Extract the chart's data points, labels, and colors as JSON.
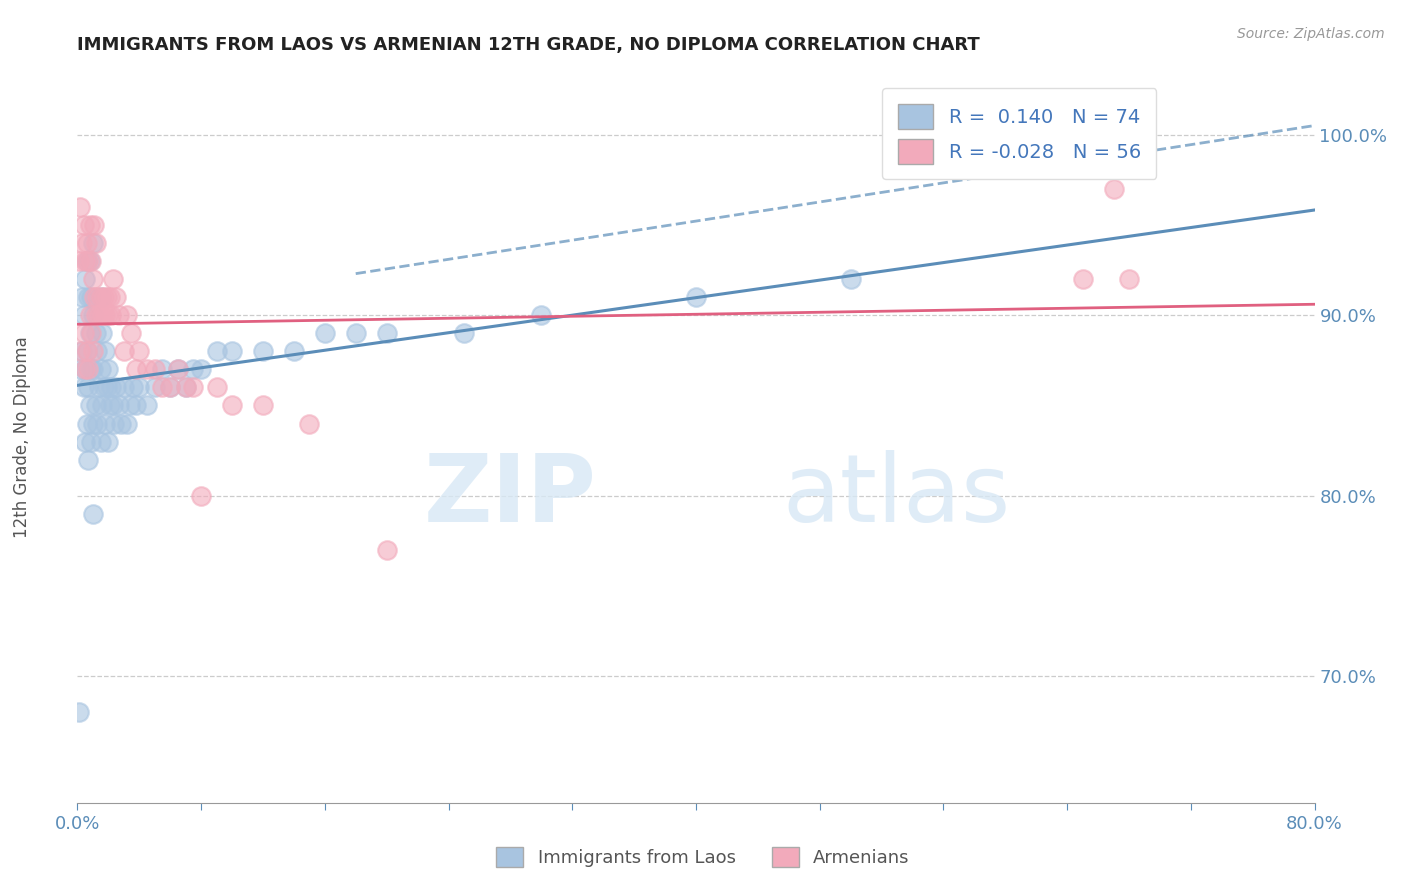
{
  "title": "IMMIGRANTS FROM LAOS VS ARMENIAN 12TH GRADE, NO DIPLOMA CORRELATION CHART",
  "source": "Source: ZipAtlas.com",
  "ylabel": "12th Grade, No Diploma",
  "xlim": [
    0.0,
    0.8
  ],
  "ylim": [
    0.63,
    1.035
  ],
  "yticks": [
    0.7,
    0.8,
    0.9,
    1.0
  ],
  "xticks": [
    0.0,
    0.08,
    0.16,
    0.24,
    0.32,
    0.4,
    0.48,
    0.56,
    0.64,
    0.72,
    0.8
  ],
  "blue_R": 0.14,
  "blue_N": 74,
  "pink_R": -0.028,
  "pink_N": 56,
  "blue_color": "#A8C4E0",
  "pink_color": "#F2AABB",
  "blue_line_color": "#5B8DB8",
  "pink_line_color": "#E06080",
  "watermark_zip": "ZIP",
  "watermark_atlas": "atlas",
  "legend_blue_label": "Immigrants from Laos",
  "legend_pink_label": "Armenians",
  "blue_scatter_x": [
    0.001,
    0.002,
    0.003,
    0.003,
    0.004,
    0.004,
    0.005,
    0.005,
    0.005,
    0.006,
    0.006,
    0.006,
    0.007,
    0.007,
    0.007,
    0.008,
    0.008,
    0.008,
    0.009,
    0.009,
    0.009,
    0.01,
    0.01,
    0.01,
    0.01,
    0.01,
    0.012,
    0.012,
    0.013,
    0.013,
    0.014,
    0.015,
    0.015,
    0.015,
    0.016,
    0.016,
    0.017,
    0.018,
    0.018,
    0.019,
    0.02,
    0.02,
    0.021,
    0.022,
    0.023,
    0.024,
    0.025,
    0.027,
    0.028,
    0.03,
    0.032,
    0.034,
    0.036,
    0.038,
    0.04,
    0.045,
    0.05,
    0.055,
    0.06,
    0.065,
    0.07,
    0.075,
    0.08,
    0.09,
    0.1,
    0.12,
    0.14,
    0.16,
    0.18,
    0.2,
    0.25,
    0.3,
    0.4,
    0.5
  ],
  "blue_scatter_y": [
    0.68,
    0.87,
    0.91,
    0.88,
    0.86,
    0.9,
    0.83,
    0.87,
    0.92,
    0.84,
    0.88,
    0.93,
    0.82,
    0.86,
    0.91,
    0.85,
    0.89,
    0.93,
    0.83,
    0.87,
    0.91,
    0.79,
    0.84,
    0.87,
    0.9,
    0.94,
    0.85,
    0.89,
    0.84,
    0.88,
    0.86,
    0.83,
    0.87,
    0.91,
    0.85,
    0.89,
    0.86,
    0.84,
    0.88,
    0.86,
    0.83,
    0.87,
    0.85,
    0.86,
    0.85,
    0.84,
    0.86,
    0.85,
    0.84,
    0.86,
    0.84,
    0.85,
    0.86,
    0.85,
    0.86,
    0.85,
    0.86,
    0.87,
    0.86,
    0.87,
    0.86,
    0.87,
    0.87,
    0.88,
    0.88,
    0.88,
    0.88,
    0.89,
    0.89,
    0.89,
    0.89,
    0.9,
    0.91,
    0.92
  ],
  "pink_scatter_x": [
    0.001,
    0.002,
    0.002,
    0.003,
    0.004,
    0.004,
    0.005,
    0.005,
    0.006,
    0.006,
    0.007,
    0.007,
    0.008,
    0.008,
    0.009,
    0.009,
    0.01,
    0.01,
    0.011,
    0.011,
    0.012,
    0.012,
    0.013,
    0.014,
    0.015,
    0.016,
    0.017,
    0.018,
    0.019,
    0.02,
    0.021,
    0.022,
    0.023,
    0.025,
    0.027,
    0.03,
    0.032,
    0.035,
    0.038,
    0.04,
    0.045,
    0.05,
    0.055,
    0.06,
    0.065,
    0.07,
    0.075,
    0.08,
    0.09,
    0.1,
    0.12,
    0.15,
    0.2,
    0.65,
    0.67,
    0.68
  ],
  "pink_scatter_y": [
    0.93,
    0.88,
    0.96,
    0.94,
    0.89,
    0.95,
    0.87,
    0.93,
    0.88,
    0.94,
    0.87,
    0.93,
    0.9,
    0.95,
    0.89,
    0.93,
    0.88,
    0.92,
    0.91,
    0.95,
    0.9,
    0.94,
    0.91,
    0.9,
    0.91,
    0.9,
    0.91,
    0.9,
    0.91,
    0.9,
    0.91,
    0.9,
    0.92,
    0.91,
    0.9,
    0.88,
    0.9,
    0.89,
    0.87,
    0.88,
    0.87,
    0.87,
    0.86,
    0.86,
    0.87,
    0.86,
    0.86,
    0.8,
    0.86,
    0.85,
    0.85,
    0.84,
    0.77,
    0.92,
    0.97,
    0.92
  ]
}
